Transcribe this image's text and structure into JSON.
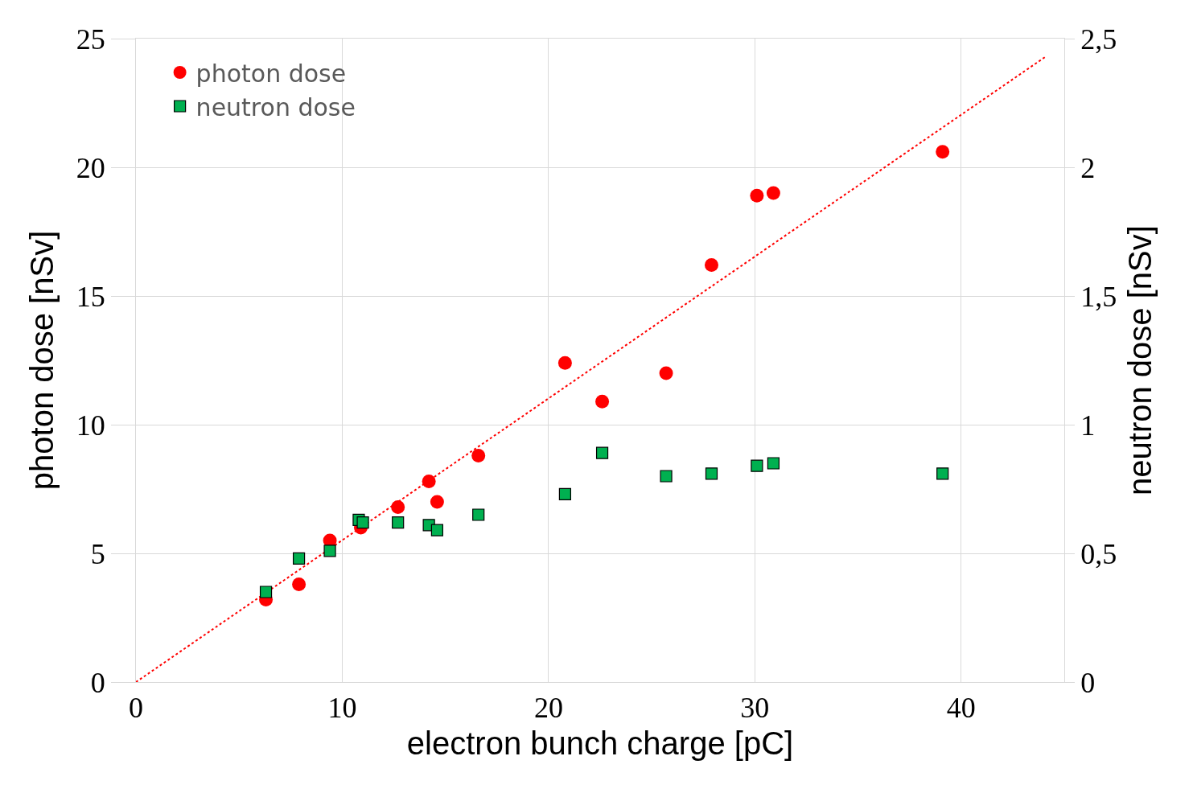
{
  "chart_data": {
    "type": "scatter",
    "xlabel": "electron bunch charge [pC]",
    "ylabel": "photon dose [nSv]",
    "y2label": "neutron dose [nSv]",
    "xlim": [
      0,
      45
    ],
    "xticks": [
      0,
      10,
      20,
      30,
      40
    ],
    "ylim": [
      0,
      25
    ],
    "yticks": [
      0,
      5,
      10,
      15,
      20,
      25
    ],
    "y2lim": [
      0,
      2.5
    ],
    "y2ticks": [
      0,
      {
        "value": 0.5,
        "label": "0,5"
      },
      1,
      {
        "value": 1.5,
        "label": "1,5"
      },
      2,
      {
        "value": 2.5,
        "label": "2,5"
      }
    ],
    "grid": true,
    "legend": "top left",
    "series": [
      {
        "name": "photon dose",
        "color": "#ff0000",
        "marker": "circle",
        "x": [
          6.3,
          7.9,
          9.4,
          10.9,
          12.7,
          14.2,
          14.6,
          16.6,
          20.8,
          22.6,
          25.7,
          27.9,
          30.1,
          30.9,
          39.1
        ],
        "values": [
          3.2,
          3.8,
          5.5,
          6.0,
          6.8,
          7.8,
          7.0,
          8.8,
          12.4,
          10.9,
          12.0,
          16.2,
          18.9,
          19.0,
          20.6
        ]
      },
      {
        "name": "neutron dose",
        "color": "#00b050",
        "marker": "square",
        "axis": "y2",
        "x": [
          6.3,
          7.9,
          9.4,
          10.8,
          11.0,
          12.7,
          14.2,
          14.6,
          16.6,
          20.8,
          22.6,
          25.7,
          27.9,
          30.1,
          30.9,
          39.1
        ],
        "values": [
          0.35,
          0.48,
          0.51,
          0.63,
          0.62,
          0.62,
          0.61,
          0.59,
          0.65,
          0.73,
          0.89,
          0.8,
          0.81,
          0.84,
          0.85,
          0.81
        ]
      },
      {
        "type": "line",
        "color": "#ff0000",
        "line_style": "dotted",
        "marker": "none",
        "x": [
          0,
          44.1
        ],
        "values": [
          0,
          24.3
        ]
      }
    ]
  }
}
